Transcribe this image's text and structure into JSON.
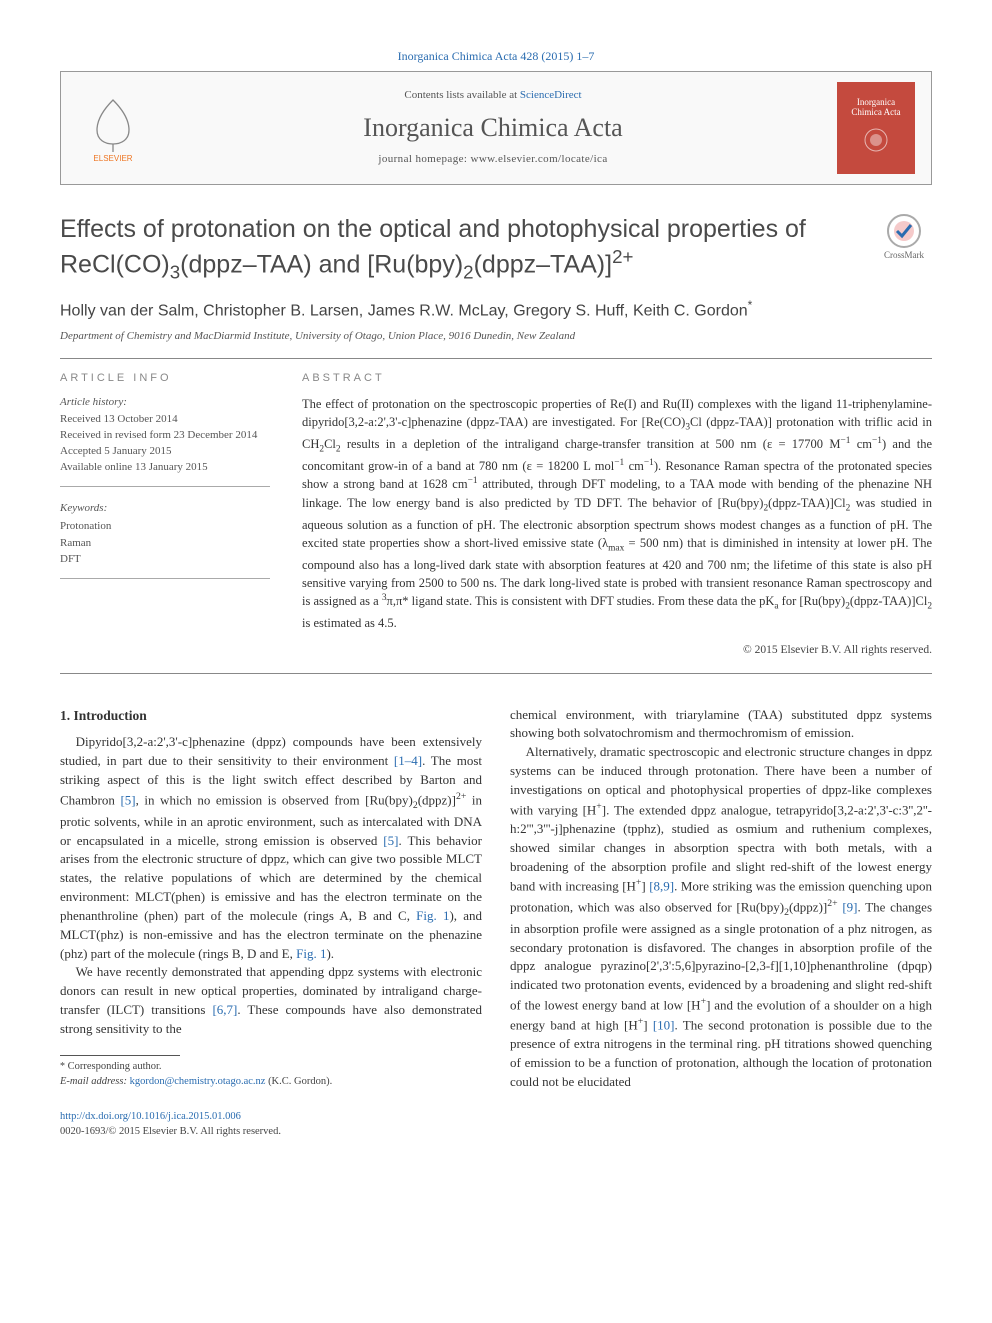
{
  "citation": "Inorganica Chimica Acta 428 (2015) 1–7",
  "journal_box": {
    "contents_prefix": "Contents lists available at ",
    "contents_link": "ScienceDirect",
    "name": "Inorganica Chimica Acta",
    "homepage": "journal homepage: www.elsevier.com/locate/ica",
    "cover_label": "Inorganica Chimica Acta",
    "publisher_mark": "ELSEVIER"
  },
  "article": {
    "title_html": "Effects of protonation on the optical and photophysical properties of ReCl(CO)<sub>3</sub>(dppz–TAA) and [Ru(bpy)<sub>2</sub>(dppz–TAA)]<sup>2+</sup>",
    "crossmark": "CrossMark",
    "authors_html": "Holly van der Salm, Christopher B. Larsen, James R.W. McLay, Gregory S. Huff, Keith C. Gordon<sup>*</sup>",
    "affiliation": "Department of Chemistry and MacDiarmid Institute, University of Otago, Union Place, 9016 Dunedin, New Zealand"
  },
  "info": {
    "heading": "ARTICLE INFO",
    "history_heading": "Article history:",
    "history": [
      "Received 13 October 2014",
      "Received in revised form 23 December 2014",
      "Accepted 5 January 2015",
      "Available online 13 January 2015"
    ],
    "keywords_heading": "Keywords:",
    "keywords": [
      "Protonation",
      "Raman",
      "DFT"
    ]
  },
  "abstract": {
    "heading": "ABSTRACT",
    "text_html": "The effect of protonation on the spectroscopic properties of Re(I) and Ru(II) complexes with the ligand 11-triphenylamine-dipyrido[3,2-a:2',3'-c]phenazine (dppz-TAA) are investigated. For [Re(CO)<sub>3</sub>Cl (dppz-TAA)] protonation with triflic acid in CH<sub>2</sub>Cl<sub>2</sub> results in a depletion of the intraligand charge-transfer transition at 500 nm (ε = 17700 M<sup>−1</sup> cm<sup>−1</sup>) and the concomitant grow-in of a band at 780 nm (ε = 18200 L mol<sup>−1</sup> cm<sup>−1</sup>). Resonance Raman spectra of the protonated species show a strong band at 1628 cm<sup>−1</sup> attributed, through DFT modeling, to a TAA mode with bending of the phenazine NH linkage. The low energy band is also predicted by TD DFT. The behavior of [Ru(bpy)<sub>2</sub>(dppz-TAA)]Cl<sub>2</sub> was studied in aqueous solution as a function of pH. The electronic absorption spectrum shows modest changes as a function of pH. The excited state properties show a short-lived emissive state (λ<sub>max</sub> = 500 nm) that is diminished in intensity at lower pH. The compound also has a long-lived dark state with absorption features at 420 and 700 nm; the lifetime of this state is also pH sensitive varying from 2500 to 500 ns. The dark long-lived state is probed with transient resonance Raman spectroscopy and is assigned as a <sup>3</sup>π,π* ligand state. This is consistent with DFT studies. From these data the pK<sub>a</sub> for [Ru(bpy)<sub>2</sub>(dppz-TAA)]Cl<sub>2</sub> is estimated as 4.5.",
    "copyright": "© 2015 Elsevier B.V. All rights reserved."
  },
  "body": {
    "section_heading": "1. Introduction",
    "p1_html": "Dipyrido[3,2-a:2',3'-c]phenazine (dppz) compounds have been extensively studied, in part due to their sensitivity to their environment <span class=\"link\">[1–4]</span>. The most striking aspect of this is the light switch effect described by Barton and Chambron <span class=\"link\">[5]</span>, in which no emission is observed from [Ru(bpy)<sub>2</sub>(dppz)]<sup>2+</sup> in protic solvents, while in an aprotic environment, such as intercalated with DNA or encapsulated in a micelle, strong emission is observed <span class=\"link\">[5]</span>. This behavior arises from the electronic structure of dppz, which can give two possible MLCT states, the relative populations of which are determined by the chemical environment: MLCT(phen) is emissive and has the electron terminate on the phenanthroline (phen) part of the molecule (rings A, B and C, <span class=\"link\">Fig. 1</span>), and MLCT(phz) is non-emissive and has the electron terminate on the phenazine (phz) part of the molecule (rings B, D and E, <span class=\"link\">Fig. 1</span>).",
    "p2_html": "We have recently demonstrated that appending dppz systems with electronic donors can result in new optical properties, dominated by intraligand charge-transfer (ILCT) transitions <span class=\"link\">[6,7]</span>. These compounds have also demonstrated strong sensitivity to the",
    "p3_html": "chemical environment, with triarylamine (TAA) substituted dppz systems showing both solvatochromism and thermochromism of emission.",
    "p4_html": "Alternatively, dramatic spectroscopic and electronic structure changes in dppz systems can be induced through protonation. There have been a number of investigations on optical and photophysical properties of dppz-like complexes with varying [H<sup>+</sup>]. The extended dppz analogue, tetrapyrido[3,2-a:2',3'-c:3'',2''-h:2''',3'''-j]phenazine (tpphz), studied as osmium and ruthenium complexes, showed similar changes in absorption spectra with both metals, with a broadening of the absorption profile and slight red-shift of the lowest energy band with increasing [H<sup>+</sup>] <span class=\"link\">[8,9]</span>. More striking was the emission quenching upon protonation, which was also observed for [Ru(bpy)<sub>2</sub>(dppz)]<sup>2+</sup> <span class=\"link\">[9]</span>. The changes in absorption profile were assigned as a single protonation of a phz nitrogen, as secondary protonation is disfavored. The changes in absorption profile of the dppz analogue pyrazino[2',3':5,6]pyrazino-[2,3-f][1,10]phenanthroline (dpqp) indicated two protonation events, evidenced by a broadening and slight red-shift of the lowest energy band at low [H<sup>+</sup>] and the evolution of a shoulder on a high energy band at high [H<sup>+</sup>] <span class=\"link\">[10]</span>. The second protonation is possible due to the presence of extra nitrogens in the terminal ring. pH titrations showed quenching of emission to be a function of protonation, although the location of protonation could not be elucidated"
  },
  "footnote": {
    "corr": "Corresponding author.",
    "email_label": "E-mail address:",
    "email": "kgordon@chemistry.otago.ac.nz",
    "email_name": "(K.C. Gordon)."
  },
  "bottom": {
    "doi": "http://dx.doi.org/10.1016/j.ica.2015.01.006",
    "issn_line": "0020-1693/© 2015 Elsevier B.V. All rights reserved."
  },
  "colors": {
    "link": "#2a6cb0",
    "cover": "#c44a3e",
    "elsevier": "#ee7624"
  }
}
